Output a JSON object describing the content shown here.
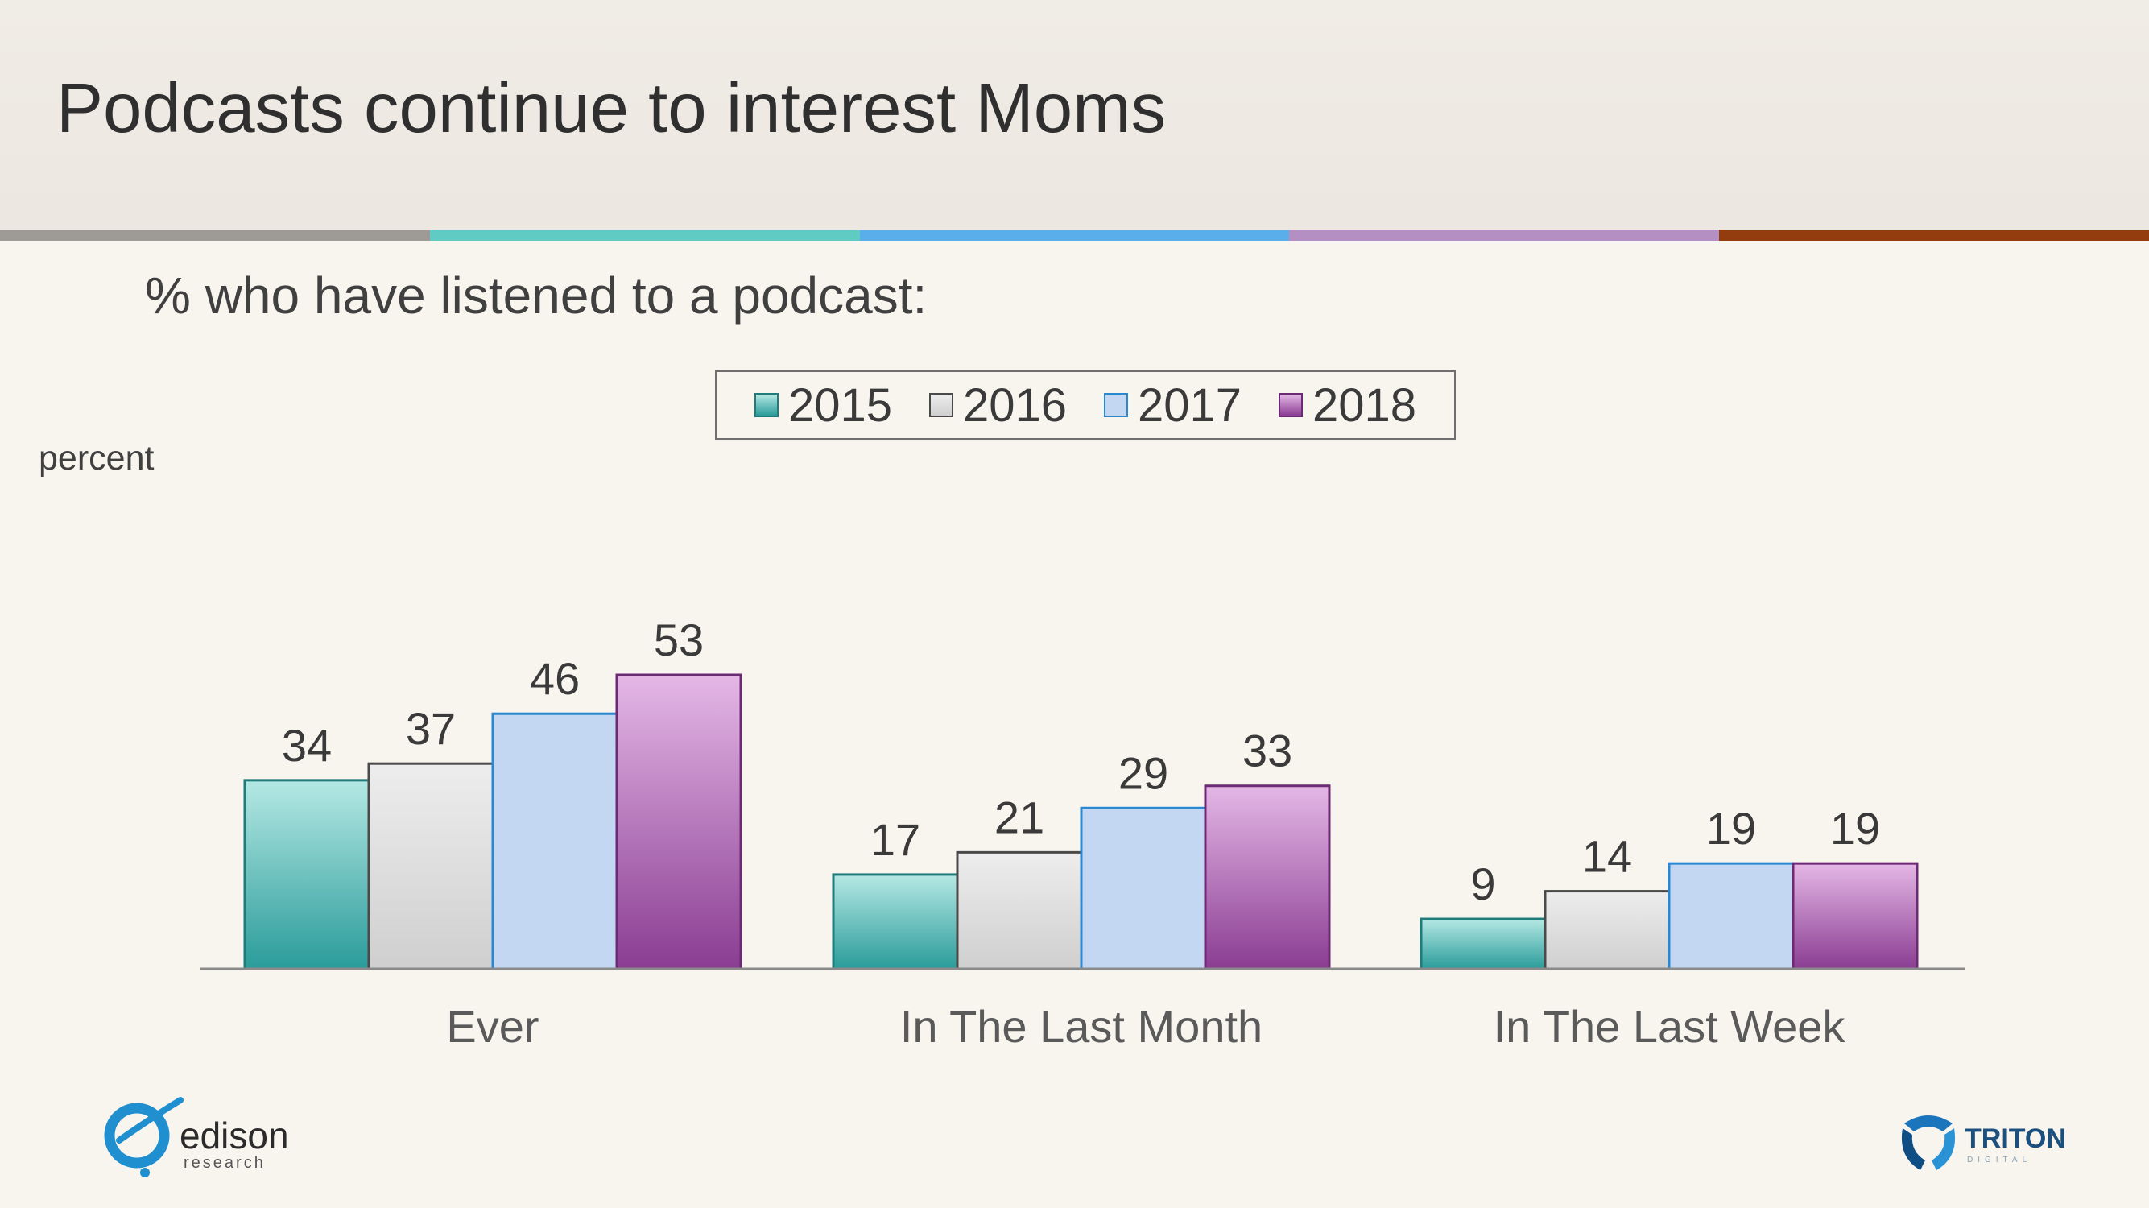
{
  "header": {
    "title": "Podcasts continue to interest Moms",
    "bar_colors": [
      "#9e9a96",
      "#5fcbc3",
      "#5aaeea",
      "#b48fc4",
      "#933d0f"
    ]
  },
  "subtitle": "% who have listened to a podcast:",
  "chart_data": {
    "type": "bar",
    "ylabel": "percent",
    "categories": [
      "Ever",
      "In The Last Month",
      "In The Last Week"
    ],
    "ylim": [
      0,
      60
    ],
    "grid": false,
    "legend_position": "top-center",
    "series": [
      {
        "name": "2015",
        "values": [
          34,
          17,
          9
        ],
        "color": "#2a9c9a",
        "color_light": "#b5e8e4",
        "border": "#1e7c7a"
      },
      {
        "name": "2016",
        "values": [
          37,
          21,
          14
        ],
        "color": "#cfcfcf",
        "color_light": "#ededed",
        "border": "#4a4a4a"
      },
      {
        "name": "2017",
        "values": [
          46,
          29,
          19
        ],
        "color": "#c4d7f2",
        "color_light": "#c4d7f2",
        "border": "#2a88d0"
      },
      {
        "name": "2018",
        "values": [
          53,
          33,
          19
        ],
        "color": "#8a3d92",
        "color_light": "#e4b7e6",
        "border": "#6d2a74"
      }
    ]
  },
  "logos": {
    "left": {
      "icon": "edison-research-logo",
      "text": "edison",
      "subtext": "research"
    },
    "right": {
      "icon": "triton-logo",
      "text": "TRITON",
      "subtext": "DIGITAL"
    }
  }
}
